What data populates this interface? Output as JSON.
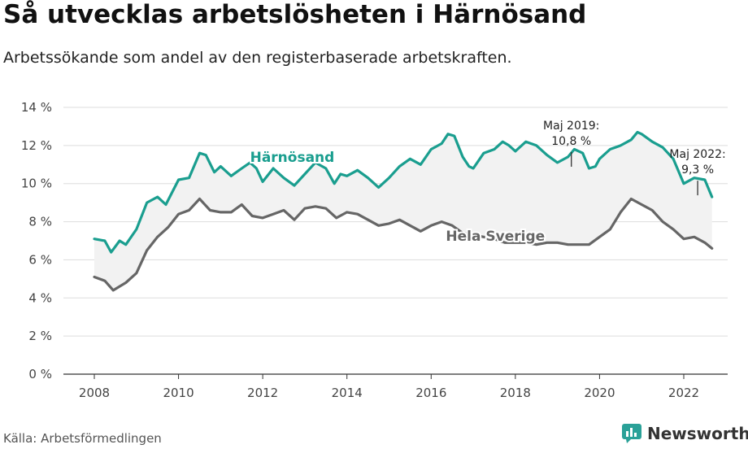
{
  "title": "Så utvecklas arbetslösheten i Härnösand",
  "subtitle": "Arbetssökande som andel av den registerbaserade arbetskraften.",
  "source": "Källa: Arbetsförmedlingen",
  "brand": {
    "name": "Newsworthy",
    "icon": "newsworthy-logo-icon",
    "color": "#2aa198"
  },
  "chart_data": {
    "type": "line",
    "x_ticks": [
      "2008",
      "2010",
      "2012",
      "2014",
      "2016",
      "2018",
      "2020",
      "2022"
    ],
    "y_ticks": [
      "0 %",
      "2 %",
      "4 %",
      "6 %",
      "8 %",
      "10 %",
      "12 %",
      "14 %"
    ],
    "xlim": [
      2007.5,
      2023.0
    ],
    "ylim": [
      0,
      14
    ],
    "grid": true,
    "shaded_area_between_series": true,
    "series": [
      {
        "name": "Härnösand",
        "color": "#1a9e8f",
        "points": [
          [
            2008.0,
            7.1
          ],
          [
            2008.25,
            7.0
          ],
          [
            2008.4,
            6.4
          ],
          [
            2008.6,
            7.0
          ],
          [
            2008.75,
            6.8
          ],
          [
            2009.0,
            7.6
          ],
          [
            2009.25,
            9.0
          ],
          [
            2009.5,
            9.3
          ],
          [
            2009.7,
            8.9
          ],
          [
            2010.0,
            10.2
          ],
          [
            2010.25,
            10.3
          ],
          [
            2010.5,
            11.6
          ],
          [
            2010.65,
            11.5
          ],
          [
            2010.85,
            10.6
          ],
          [
            2011.0,
            10.9
          ],
          [
            2011.25,
            10.4
          ],
          [
            2011.5,
            10.8
          ],
          [
            2011.7,
            11.1
          ],
          [
            2011.85,
            10.8
          ],
          [
            2012.0,
            10.1
          ],
          [
            2012.25,
            10.8
          ],
          [
            2012.5,
            10.3
          ],
          [
            2012.75,
            9.9
          ],
          [
            2013.0,
            10.5
          ],
          [
            2013.25,
            11.1
          ],
          [
            2013.5,
            10.8
          ],
          [
            2013.7,
            10.0
          ],
          [
            2013.85,
            10.5
          ],
          [
            2014.0,
            10.4
          ],
          [
            2014.25,
            10.7
          ],
          [
            2014.5,
            10.3
          ],
          [
            2014.75,
            9.8
          ],
          [
            2015.0,
            10.3
          ],
          [
            2015.25,
            10.9
          ],
          [
            2015.5,
            11.3
          ],
          [
            2015.75,
            11.0
          ],
          [
            2016.0,
            11.8
          ],
          [
            2016.25,
            12.1
          ],
          [
            2016.4,
            12.6
          ],
          [
            2016.55,
            12.5
          ],
          [
            2016.75,
            11.4
          ],
          [
            2016.9,
            10.9
          ],
          [
            2017.0,
            10.8
          ],
          [
            2017.25,
            11.6
          ],
          [
            2017.5,
            11.8
          ],
          [
            2017.7,
            12.2
          ],
          [
            2017.85,
            12.0
          ],
          [
            2018.0,
            11.7
          ],
          [
            2018.25,
            12.2
          ],
          [
            2018.5,
            12.0
          ],
          [
            2018.75,
            11.5
          ],
          [
            2019.0,
            11.1
          ],
          [
            2019.25,
            11.4
          ],
          [
            2019.4,
            11.8
          ],
          [
            2019.6,
            11.6
          ],
          [
            2019.75,
            10.8
          ],
          [
            2019.9,
            10.9
          ],
          [
            2020.0,
            11.3
          ],
          [
            2020.25,
            11.8
          ],
          [
            2020.5,
            12.0
          ],
          [
            2020.75,
            12.3
          ],
          [
            2020.9,
            12.7
          ],
          [
            2021.0,
            12.6
          ],
          [
            2021.25,
            12.2
          ],
          [
            2021.5,
            11.9
          ],
          [
            2021.75,
            11.3
          ],
          [
            2022.0,
            10.0
          ],
          [
            2022.25,
            10.3
          ],
          [
            2022.5,
            10.2
          ],
          [
            2022.67,
            9.3
          ]
        ],
        "label": "Härnösand"
      },
      {
        "name": "Hela Sverige",
        "color": "#666666",
        "points": [
          [
            2008.0,
            5.1
          ],
          [
            2008.25,
            4.9
          ],
          [
            2008.45,
            4.4
          ],
          [
            2008.75,
            4.8
          ],
          [
            2009.0,
            5.3
          ],
          [
            2009.25,
            6.5
          ],
          [
            2009.5,
            7.2
          ],
          [
            2009.75,
            7.7
          ],
          [
            2010.0,
            8.4
          ],
          [
            2010.25,
            8.6
          ],
          [
            2010.5,
            9.2
          ],
          [
            2010.75,
            8.6
          ],
          [
            2011.0,
            8.5
          ],
          [
            2011.25,
            8.5
          ],
          [
            2011.5,
            8.9
          ],
          [
            2011.75,
            8.3
          ],
          [
            2012.0,
            8.2
          ],
          [
            2012.25,
            8.4
          ],
          [
            2012.5,
            8.6
          ],
          [
            2012.75,
            8.1
          ],
          [
            2013.0,
            8.7
          ],
          [
            2013.25,
            8.8
          ],
          [
            2013.5,
            8.7
          ],
          [
            2013.75,
            8.2
          ],
          [
            2014.0,
            8.5
          ],
          [
            2014.25,
            8.4
          ],
          [
            2014.5,
            8.1
          ],
          [
            2014.75,
            7.8
          ],
          [
            2015.0,
            7.9
          ],
          [
            2015.25,
            8.1
          ],
          [
            2015.5,
            7.8
          ],
          [
            2015.75,
            7.5
          ],
          [
            2016.0,
            7.8
          ],
          [
            2016.25,
            8.0
          ],
          [
            2016.5,
            7.8
          ],
          [
            2016.75,
            7.4
          ],
          [
            2017.0,
            7.3
          ],
          [
            2017.25,
            7.2
          ],
          [
            2017.5,
            7.1
          ],
          [
            2017.75,
            6.9
          ],
          [
            2018.0,
            6.9
          ],
          [
            2018.25,
            6.9
          ],
          [
            2018.5,
            6.8
          ],
          [
            2018.75,
            6.9
          ],
          [
            2019.0,
            6.9
          ],
          [
            2019.25,
            6.8
          ],
          [
            2019.5,
            6.8
          ],
          [
            2019.75,
            6.8
          ],
          [
            2020.0,
            7.2
          ],
          [
            2020.25,
            7.6
          ],
          [
            2020.5,
            8.5
          ],
          [
            2020.75,
            9.2
          ],
          [
            2021.0,
            8.9
          ],
          [
            2021.25,
            8.6
          ],
          [
            2021.5,
            8.0
          ],
          [
            2021.75,
            7.6
          ],
          [
            2022.0,
            7.1
          ],
          [
            2022.25,
            7.2
          ],
          [
            2022.5,
            6.9
          ],
          [
            2022.67,
            6.6
          ]
        ],
        "label": "Hela Sverige"
      }
    ],
    "annotations": [
      {
        "text_line1": "Maj 2019:",
        "text_line2": "10,8 %",
        "x": 2019.33,
        "y": 10.8
      },
      {
        "text_line1": "Maj 2022:",
        "text_line2": "9,3 %",
        "x": 2022.33,
        "y": 9.3
      }
    ]
  }
}
